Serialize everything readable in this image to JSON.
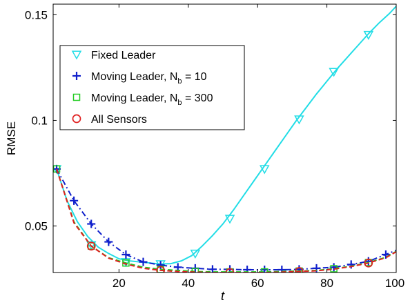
{
  "chart_data": {
    "type": "line",
    "xlabel": "t",
    "ylabel": "RMSE",
    "xlim": [
      1,
      100
    ],
    "ylim": [
      0.028,
      0.155
    ],
    "xticks": [
      20,
      40,
      60,
      80,
      100
    ],
    "xtick_labels": [
      "20",
      "40",
      "60",
      "80",
      "100"
    ],
    "yticks": [
      0.05,
      0.1,
      0.15
    ],
    "ytick_labels": [
      "0.05",
      "0.1",
      "0.15"
    ],
    "legend_position": "upper-left",
    "series": [
      {
        "name": "Fixed Leader",
        "color": "#22DDE6",
        "line_style": "solid",
        "marker": "triangle-down",
        "x": [
          2,
          5,
          8,
          11,
          14,
          17,
          20,
          23,
          26,
          29,
          32,
          35,
          38,
          41,
          44,
          47,
          50,
          53,
          56,
          59,
          62,
          65,
          68,
          71,
          74,
          77,
          80,
          83,
          86,
          89,
          92,
          95,
          98,
          100
        ],
        "y": [
          0.077,
          0.062,
          0.052,
          0.045,
          0.04,
          0.037,
          0.0345,
          0.0335,
          0.033,
          0.0325,
          0.032,
          0.0322,
          0.0335,
          0.036,
          0.0405,
          0.0455,
          0.051,
          0.0575,
          0.0645,
          0.0715,
          0.0785,
          0.0855,
          0.0925,
          0.0995,
          0.106,
          0.1125,
          0.1185,
          0.1245,
          0.13,
          0.1355,
          0.141,
          0.146,
          0.1505,
          0.154
        ],
        "marker_x": [
          2,
          12,
          22,
          32,
          42,
          52,
          62,
          72,
          82,
          92
        ],
        "marker_y": [
          0.077,
          0.041,
          0.033,
          0.032,
          0.037,
          0.0535,
          0.077,
          0.1005,
          0.123,
          0.1405
        ]
      },
      {
        "name": "Moving Leader, N_b = 10",
        "label_main": "Moving Leader, N",
        "label_sub": "b",
        "label_tail": " = 10",
        "color": "#1020CC",
        "line_style": "dashdot",
        "marker": "plus",
        "x": [
          2,
          7,
          12,
          17,
          22,
          27,
          32,
          37,
          42,
          47,
          52,
          57,
          62,
          67,
          72,
          77,
          82,
          87,
          92,
          97,
          100
        ],
        "y": [
          0.077,
          0.062,
          0.051,
          0.0425,
          0.0365,
          0.033,
          0.0315,
          0.0305,
          0.03,
          0.0295,
          0.0295,
          0.0293,
          0.0293,
          0.0293,
          0.0295,
          0.03,
          0.0305,
          0.0318,
          0.0333,
          0.0365,
          0.0385
        ],
        "marker_x": [
          2,
          7,
          12,
          17,
          22,
          27,
          32,
          37,
          42,
          47,
          52,
          57,
          62,
          67,
          72,
          77,
          82,
          87,
          92,
          97
        ],
        "marker_y": [
          0.077,
          0.062,
          0.051,
          0.0425,
          0.0365,
          0.033,
          0.0315,
          0.0305,
          0.03,
          0.0295,
          0.0295,
          0.0293,
          0.0293,
          0.0293,
          0.0295,
          0.03,
          0.0305,
          0.0318,
          0.0333,
          0.0365
        ]
      },
      {
        "name": "Moving Leader, N_b = 300",
        "label_main": "Moving Leader, N",
        "label_sub": "b",
        "label_tail": " = 300",
        "color": "#22CC22",
        "line_style": "dashed",
        "marker": "square",
        "x": [
          2,
          7,
          12,
          17,
          22,
          27,
          32,
          37,
          42,
          47,
          52,
          57,
          62,
          67,
          72,
          77,
          82,
          87,
          92,
          97,
          100
        ],
        "y": [
          0.077,
          0.052,
          0.0405,
          0.035,
          0.0325,
          0.0305,
          0.0295,
          0.029,
          0.0285,
          0.0283,
          0.0283,
          0.0283,
          0.0283,
          0.0285,
          0.0287,
          0.029,
          0.0298,
          0.031,
          0.0327,
          0.0352,
          0.038
        ],
        "marker_x": [
          2,
          12,
          22,
          32,
          42,
          52,
          62,
          72,
          82,
          92
        ],
        "marker_y": [
          0.077,
          0.0405,
          0.0325,
          0.0295,
          0.0285,
          0.0283,
          0.0283,
          0.0287,
          0.0298,
          0.0327
        ]
      },
      {
        "name": "All Sensors",
        "color": "#E02020",
        "line_style": "dashed",
        "marker": "circle",
        "x": [
          2,
          7,
          12,
          17,
          22,
          27,
          32,
          37,
          42,
          47,
          52,
          57,
          62,
          67,
          72,
          77,
          82,
          87,
          92,
          97,
          100
        ],
        "y": [
          0.077,
          0.0515,
          0.0405,
          0.0348,
          0.032,
          0.03,
          0.029,
          0.0285,
          0.0282,
          0.028,
          0.028,
          0.028,
          0.028,
          0.0282,
          0.0285,
          0.0288,
          0.0296,
          0.0308,
          0.0325,
          0.035,
          0.0378
        ],
        "marker_x": [
          12,
          32,
          52,
          72,
          92
        ],
        "marker_y": [
          0.0405,
          0.029,
          0.028,
          0.0285,
          0.0325
        ]
      }
    ]
  }
}
